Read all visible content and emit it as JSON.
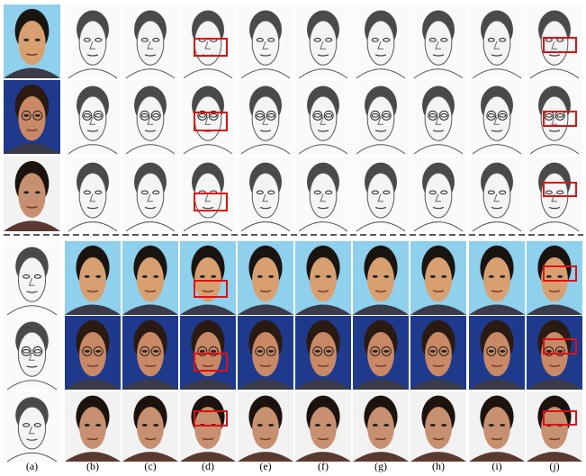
{
  "figure": {
    "column_labels": [
      "(a)",
      "(b)",
      "(c)",
      "(d)",
      "(e)",
      "(f)",
      "(g)",
      "(h)",
      "(i)",
      "(j)"
    ]
  }
}
